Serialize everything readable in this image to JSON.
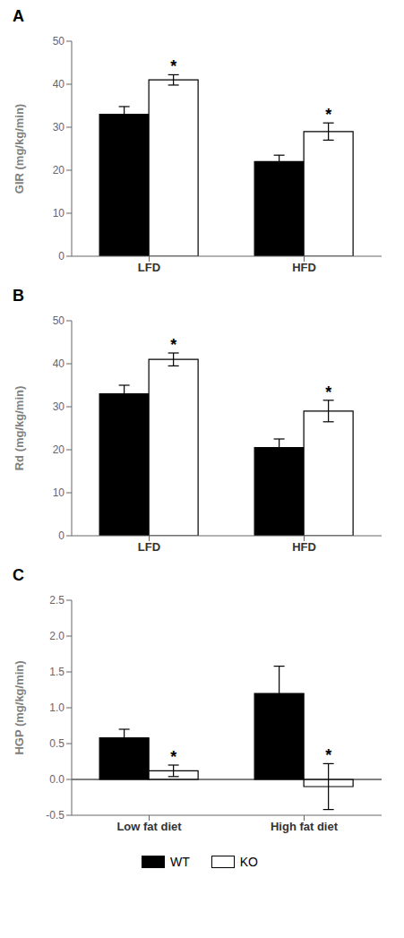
{
  "chart_data": [
    {
      "type": "bar",
      "title": "A",
      "ylabel": "GIR (mg/kg/min)",
      "categories": [
        "LFD",
        "HFD"
      ],
      "series": [
        {
          "name": "WT",
          "color": "#000000",
          "values": [
            33.0,
            22.0
          ],
          "errors": [
            1.8,
            1.5
          ]
        },
        {
          "name": "KO",
          "color": "#ffffff",
          "values": [
            41.0,
            29.0
          ],
          "errors": [
            1.2,
            2.0
          ]
        }
      ],
      "annotations": [
        {
          "text": "*",
          "series": "KO",
          "category": "LFD"
        },
        {
          "text": "*",
          "series": "KO",
          "category": "HFD"
        }
      ],
      "ylim": [
        0,
        50
      ],
      "yticks": [
        0,
        10,
        20,
        30,
        40,
        50
      ],
      "grid": false
    },
    {
      "type": "bar",
      "title": "B",
      "ylabel": "Rd (mg/kg/min)",
      "categories": [
        "LFD",
        "HFD"
      ],
      "series": [
        {
          "name": "WT",
          "color": "#000000",
          "values": [
            33.0,
            20.5
          ],
          "errors": [
            2.0,
            2.0
          ]
        },
        {
          "name": "KO",
          "color": "#ffffff",
          "values": [
            41.0,
            29.0
          ],
          "errors": [
            1.5,
            2.5
          ]
        }
      ],
      "annotations": [
        {
          "text": "*",
          "series": "KO",
          "category": "LFD"
        },
        {
          "text": "*",
          "series": "KO",
          "category": "HFD"
        }
      ],
      "ylim": [
        0,
        50
      ],
      "yticks": [
        0,
        10,
        20,
        30,
        40,
        50
      ],
      "grid": false
    },
    {
      "type": "bar",
      "title": "C",
      "ylabel": "HGP (mg/kg/min)",
      "categories": [
        "Low fat diet",
        "High fat diet"
      ],
      "series": [
        {
          "name": "WT",
          "color": "#000000",
          "values": [
            0.58,
            1.2
          ],
          "errors": [
            0.12,
            0.38
          ]
        },
        {
          "name": "KO",
          "color": "#ffffff",
          "values": [
            0.12,
            -0.1
          ],
          "errors": [
            0.08,
            0.32
          ]
        }
      ],
      "annotations": [
        {
          "text": "*",
          "series": "KO",
          "category": "Low fat diet"
        },
        {
          "text": "*",
          "series": "KO",
          "category": "High fat diet"
        }
      ],
      "ylim": [
        -0.5,
        2.5
      ],
      "yticks": [
        -0.5,
        {
          "value": 0,
          "label": "0.0"
        },
        0.5,
        {
          "value": 1,
          "label": "1.0"
        },
        1.5,
        {
          "value": 2,
          "label": "2.0"
        },
        2.5
      ],
      "grid": false
    }
  ]
}
